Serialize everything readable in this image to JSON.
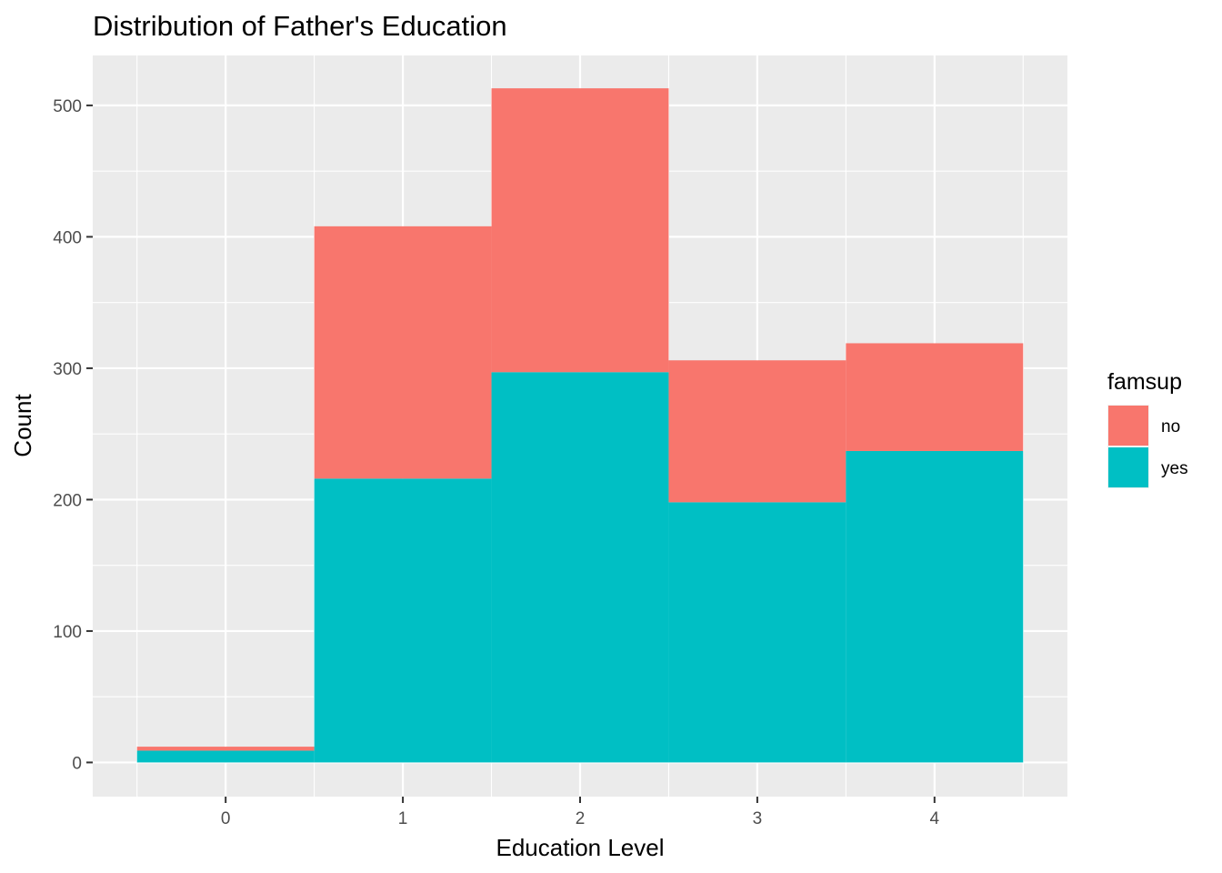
{
  "chart_data": {
    "type": "bar",
    "stacked": true,
    "title": "Distribution of Father's Education",
    "xlabel": "Education Level",
    "ylabel": "Count",
    "categories": [
      "0",
      "1",
      "2",
      "3",
      "4"
    ],
    "series": [
      {
        "name": "no",
        "values": [
          3,
          192,
          216,
          108,
          82
        ],
        "color": "#F8766D"
      },
      {
        "name": "yes",
        "values": [
          9,
          216,
          297,
          198,
          237
        ],
        "color": "#00BFC4"
      }
    ],
    "xlim": [
      -0.75,
      4.75
    ],
    "ylim": [
      -26,
      538
    ],
    "yticks": [
      0,
      100,
      200,
      300,
      400,
      500
    ],
    "legend": {
      "title": "famsup",
      "position": "right",
      "items": [
        "no",
        "yes"
      ]
    },
    "grid": true,
    "panel_background": "#EBEBEB"
  }
}
